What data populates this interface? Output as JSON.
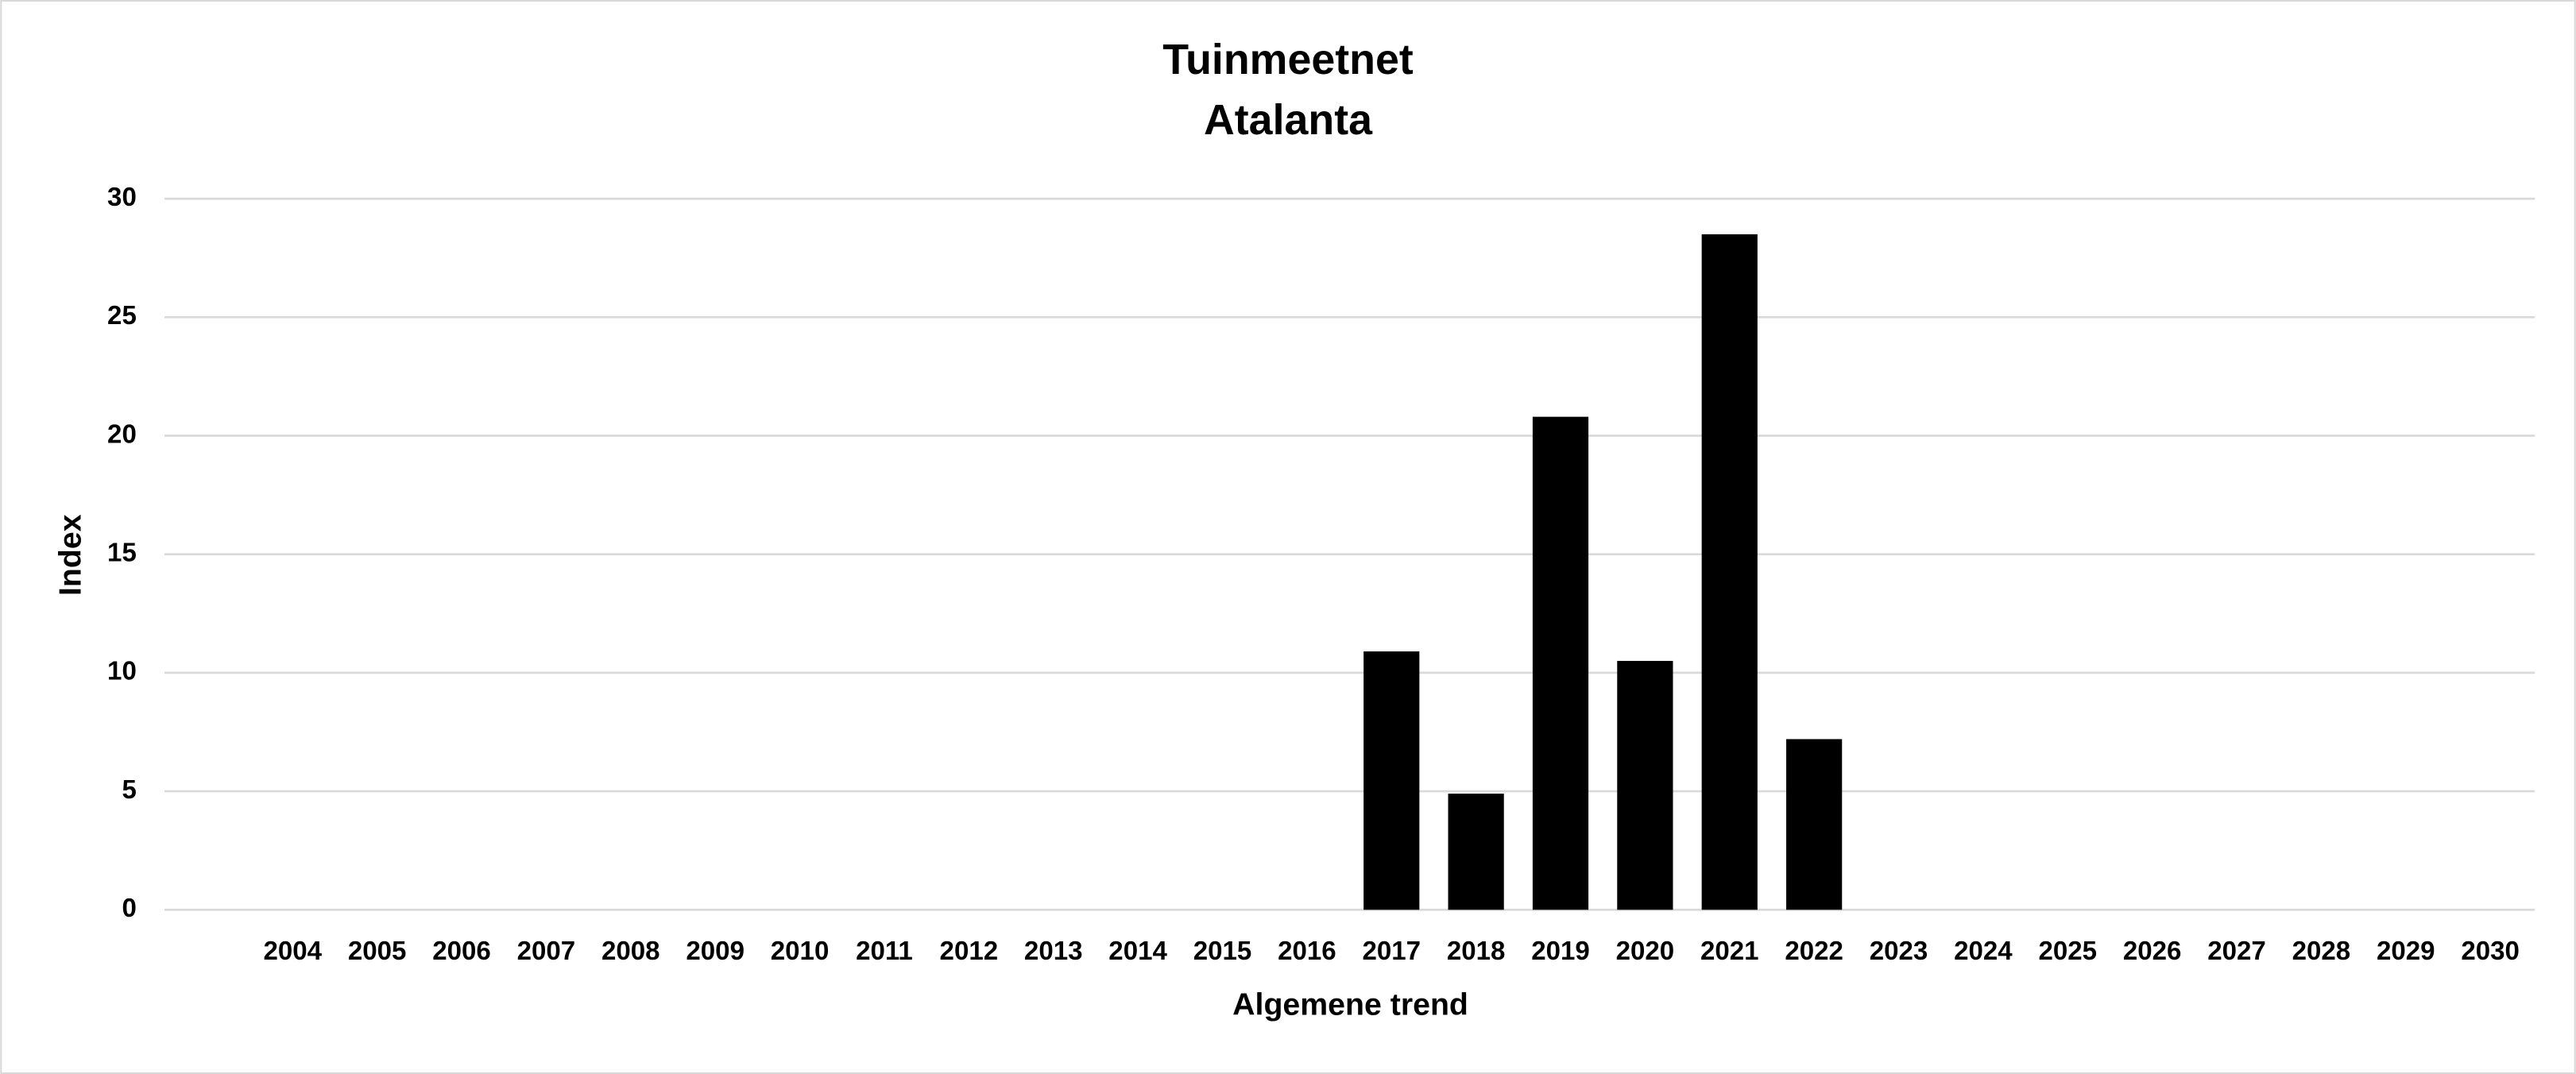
{
  "chart_data": {
    "type": "bar",
    "title": "Tuinmeetnet",
    "subtitle": "Atalanta",
    "x_label": "Algemene trend",
    "y_label": "Index",
    "categories": [
      "2004",
      "2005",
      "2006",
      "2007",
      "2008",
      "2009",
      "2010",
      "2011",
      "2012",
      "2013",
      "2014",
      "2015",
      "2016",
      "2017",
      "2018",
      "2019",
      "2020",
      "2021",
      "2022",
      "2023",
      "2024",
      "2025",
      "2026",
      "2027",
      "2028",
      "2029",
      "2030"
    ],
    "values": [
      null,
      null,
      null,
      null,
      null,
      null,
      null,
      null,
      null,
      null,
      null,
      null,
      null,
      10.9,
      4.9,
      20.8,
      10.5,
      28.5,
      7.2,
      null,
      null,
      null,
      null,
      null,
      null,
      null,
      null
    ],
    "color": "#000000",
    "ylim": [
      0,
      30
    ],
    "yticks": [
      0,
      5,
      10,
      15,
      20,
      25,
      30
    ],
    "grid": true
  }
}
